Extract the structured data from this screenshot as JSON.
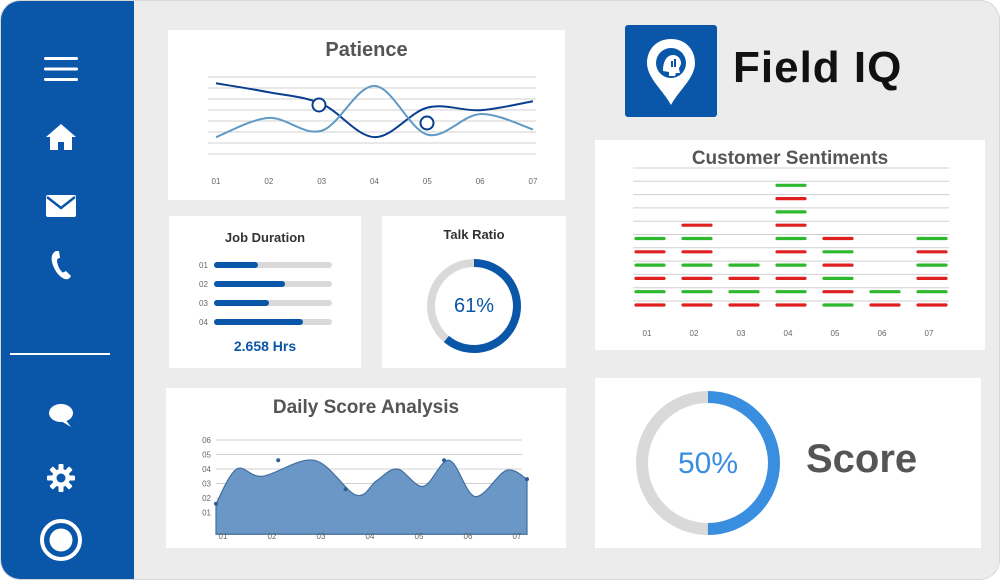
{
  "brand": {
    "name": "Field IQ",
    "logo_icon": "location-pin-head-icon",
    "color": "#0a56a8"
  },
  "sidebar": {
    "items": [
      {
        "icon": "menu-icon"
      },
      {
        "icon": "home-icon"
      },
      {
        "icon": "mail-icon"
      },
      {
        "icon": "phone-icon"
      },
      {
        "icon": "chat-icon"
      },
      {
        "icon": "gear-icon"
      },
      {
        "icon": "record-icon"
      }
    ]
  },
  "patience": {
    "title": "Patience",
    "chart_data": {
      "type": "line",
      "x": [
        "01",
        "02",
        "03",
        "04",
        "05",
        "06",
        "07"
      ],
      "series": [
        {
          "color": "#0a3f8f",
          "values": [
            5.2,
            4.5,
            3.6,
            1.0,
            3.3,
            3.1,
            3.8
          ]
        },
        {
          "color": "#5f9ac6",
          "values": [
            1.0,
            2.5,
            1.5,
            5.0,
            1.2,
            2.8,
            1.6
          ]
        }
      ]
    }
  },
  "job_duration": {
    "title": "Job Duration",
    "rows": [
      {
        "label": "01",
        "value": 0.37
      },
      {
        "label": "02",
        "value": 0.6
      },
      {
        "label": "03",
        "value": 0.47
      },
      {
        "label": "04",
        "value": 0.75
      }
    ],
    "total": "2.658 Hrs"
  },
  "talk_ratio": {
    "title": "Talk Ratio",
    "value": "61%",
    "fraction": 0.61
  },
  "sentiments": {
    "title": "Customer Sentiments",
    "chart_data": {
      "type": "bar",
      "categories": [
        "01",
        "02",
        "03",
        "04",
        "05",
        "06",
        "07"
      ],
      "series": [
        {
          "name": "green",
          "color": "#2db82d"
        },
        {
          "name": "red",
          "color": "#e02020"
        }
      ],
      "stacks": [
        [
          "red",
          "green",
          "red",
          "green",
          "red",
          "green"
        ],
        [
          "red",
          "green",
          "red",
          "green",
          "red",
          "green",
          "red"
        ],
        [
          "red",
          "green",
          "red",
          "green"
        ],
        [
          "red",
          "green",
          "red",
          "green",
          "red",
          "green",
          "red",
          "green",
          "red",
          "green"
        ],
        [
          "green",
          "red",
          "green",
          "red",
          "green",
          "red"
        ],
        [
          "red",
          "green"
        ],
        [
          "red",
          "green",
          "red",
          "green",
          "red",
          "green"
        ]
      ]
    }
  },
  "daily": {
    "title": "Daily Score Analysis",
    "chart_data": {
      "type": "area",
      "x": [
        "01",
        "02",
        "03",
        "04",
        "05",
        "06",
        "07"
      ],
      "y_ticks": [
        "06",
        "05",
        "04",
        "03",
        "02",
        "01"
      ],
      "ylim": [
        0,
        6
      ],
      "color": "#6b97c6",
      "points": [
        [
          0,
          1.6
        ],
        [
          0.4,
          4.0
        ],
        [
          0.9,
          3.5
        ],
        [
          1.9,
          4.6
        ],
        [
          2.7,
          2.2
        ],
        [
          3.1,
          3.2
        ],
        [
          3.5,
          4.0
        ],
        [
          4.0,
          2.8
        ],
        [
          4.5,
          4.6
        ],
        [
          5.0,
          2.1
        ],
        [
          5.6,
          3.9
        ],
        [
          6.0,
          3.3
        ]
      ]
    }
  },
  "score": {
    "label": "Score",
    "value": "50%",
    "fraction": 0.5,
    "color": "#3a8ee0"
  }
}
